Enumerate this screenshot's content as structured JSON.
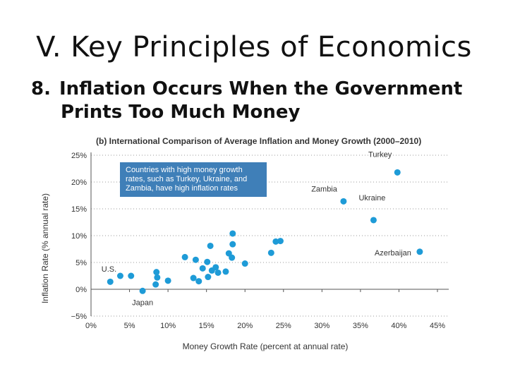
{
  "slide": {
    "title": "V. Key Principles of Economics",
    "subtitle_number": "8.",
    "subtitle_line1": "Inflation Occurs When the Government",
    "subtitle_line2": "Prints Too Much Money"
  },
  "colors": {
    "point": "#1E9BD7",
    "callout_bg": "#3F7FB8",
    "axis": "#555555",
    "grid": "#999999",
    "text": "#333333"
  },
  "chart_data": {
    "type": "scatter",
    "title": "(b) International Comparison of Average Inflation and Money Growth (2000–2010)",
    "xlabel": "Money Growth Rate (percent at annual rate)",
    "ylabel": "Inflation Rate (% annual rate)",
    "xlim": [
      0,
      45
    ],
    "ylim": [
      -5,
      25
    ],
    "x_ticks": [
      0,
      5,
      10,
      15,
      20,
      25,
      30,
      35,
      40,
      45
    ],
    "y_ticks": [
      -5,
      0,
      5,
      10,
      15,
      20,
      25
    ],
    "x_tick_labels": [
      "0%",
      "5%",
      "10%",
      "15%",
      "20%",
      "25%",
      "30%",
      "35%",
      "40%",
      "45%"
    ],
    "y_tick_labels": [
      "−5%",
      "0%",
      "5%",
      "10%",
      "15%",
      "20%",
      "25%"
    ],
    "grid": "horizontal dotted",
    "callout": {
      "lines": [
        "Countries with high money growth",
        "rates, such as Turkey, Ukraine, and",
        "Zambia, have high inflation rates"
      ]
    },
    "labeled_points": [
      {
        "label": "Turkey",
        "x": 39.8,
        "y": 21.8
      },
      {
        "label": "Zambia",
        "x": 32.8,
        "y": 16.4
      },
      {
        "label": "Ukraine",
        "x": 36.7,
        "y": 12.9
      },
      {
        "label": "Azerbaijan",
        "x": 42.7,
        "y": 7.0
      },
      {
        "label": "U.S.",
        "x": 3.8,
        "y": 2.5
      },
      {
        "label": "Japan",
        "x": 6.7,
        "y": -0.3
      }
    ],
    "points": [
      {
        "x": 2.5,
        "y": 1.4
      },
      {
        "x": 5.2,
        "y": 2.5
      },
      {
        "x": 8.5,
        "y": 3.2
      },
      {
        "x": 8.6,
        "y": 2.2
      },
      {
        "x": 8.4,
        "y": 0.9
      },
      {
        "x": 10.0,
        "y": 1.6
      },
      {
        "x": 12.2,
        "y": 6.0
      },
      {
        "x": 13.6,
        "y": 5.5
      },
      {
        "x": 14.5,
        "y": 3.9
      },
      {
        "x": 15.1,
        "y": 5.1
      },
      {
        "x": 15.7,
        "y": 3.5
      },
      {
        "x": 16.2,
        "y": 4.1
      },
      {
        "x": 15.5,
        "y": 8.1
      },
      {
        "x": 16.5,
        "y": 3.1
      },
      {
        "x": 17.5,
        "y": 3.3
      },
      {
        "x": 17.9,
        "y": 6.7
      },
      {
        "x": 18.3,
        "y": 5.9
      },
      {
        "x": 18.4,
        "y": 8.4
      },
      {
        "x": 18.4,
        "y": 10.4
      },
      {
        "x": 13.3,
        "y": 2.1
      },
      {
        "x": 14.0,
        "y": 1.5
      },
      {
        "x": 15.2,
        "y": 2.3
      },
      {
        "x": 20.0,
        "y": 4.8
      },
      {
        "x": 23.4,
        "y": 6.8
      },
      {
        "x": 24.0,
        "y": 8.9
      },
      {
        "x": 24.6,
        "y": 9.0
      }
    ]
  }
}
